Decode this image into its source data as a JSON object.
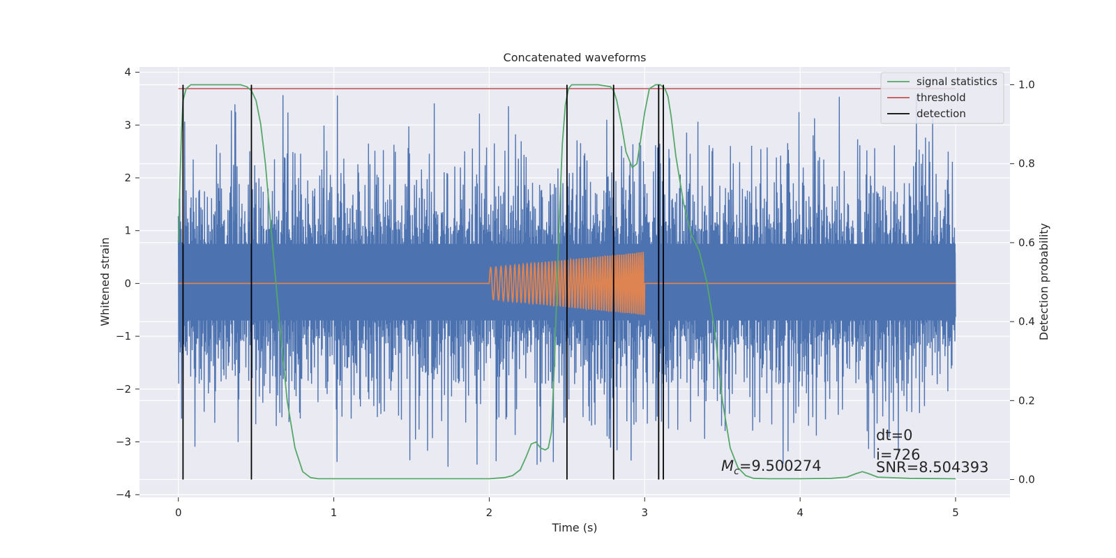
{
  "chart_data": {
    "type": "line",
    "title": "Concatenated waveforms",
    "xlabel": "Time (s)",
    "ylabel": "Whitened strain",
    "y2label": "Detection probability",
    "xlim": [
      -0.25,
      5.35
    ],
    "ylim": [
      -4.05,
      4.1
    ],
    "y2lim": [
      -0.045,
      1.045
    ],
    "xticks": [
      0,
      1,
      2,
      3,
      4,
      5
    ],
    "yticks": [
      4,
      3,
      2,
      1,
      0,
      -1,
      -2,
      -3,
      -4
    ],
    "y2ticks": [
      1.0,
      0.8,
      0.6,
      0.4,
      0.2,
      0.0
    ],
    "xtick_labels": [
      "0",
      "1",
      "2",
      "3",
      "4",
      "5"
    ],
    "ytick_labels": [
      "4",
      "3",
      "2",
      "1",
      "0",
      "−1",
      "−2",
      "−3",
      "−4"
    ],
    "y2tick_labels": [
      "1.0",
      "0.8",
      "0.6",
      "0.4",
      "0.2",
      "0.0"
    ],
    "grid": true,
    "legend_position": "top-right",
    "colors": {
      "strain": "#4c72b0",
      "injected_waveform": "#dd8452",
      "signal_statistics": "#55a868",
      "threshold": "#c44e52",
      "detection": "#000000",
      "axes_background": "#eaeaf2",
      "grid": "#ffffff"
    },
    "strain": {
      "x_range": [
        0,
        5
      ],
      "core_band": [
        -0.7,
        0.75
      ],
      "typical_extent": [
        -2.5,
        2.8
      ],
      "max": 3.7,
      "min": -3.6
    },
    "injected_waveform": {
      "x_range": [
        0,
        5
      ],
      "baseline": 0,
      "chirp_start": 2.0,
      "chirp_end": 3.0,
      "amplitude_start": 0.3,
      "amplitude_end": 0.6
    },
    "series": [
      {
        "name": "signal statistics",
        "axis": "right",
        "x": [
          0,
          0.01,
          0.02,
          0.03,
          0.05,
          0.08,
          0.12,
          0.2,
          0.3,
          0.4,
          0.44,
          0.47,
          0.5,
          0.53,
          0.56,
          0.6,
          0.65,
          0.7,
          0.75,
          0.8,
          0.85,
          0.9,
          1.0,
          1.2,
          1.4,
          1.6,
          1.8,
          2.0,
          2.1,
          2.15,
          2.2,
          2.24,
          2.27,
          2.3,
          2.33,
          2.36,
          2.38,
          2.4,
          2.42,
          2.45,
          2.47,
          2.49,
          2.51,
          2.53,
          2.56,
          2.6,
          2.7,
          2.78,
          2.8,
          2.82,
          2.85,
          2.88,
          2.92,
          2.95,
          2.97,
          3.0,
          3.03,
          3.07,
          3.1,
          3.13,
          3.15,
          3.17,
          3.2,
          3.25,
          3.3,
          3.35,
          3.4,
          3.45,
          3.5,
          3.55,
          3.6,
          3.65,
          3.7,
          3.8,
          4.0,
          4.2,
          4.3,
          4.36,
          4.4,
          4.44,
          4.5,
          4.7,
          5.0
        ],
        "values": [
          0.6,
          0.75,
          0.88,
          0.96,
          0.99,
          1.0,
          1.0,
          1.0,
          1.0,
          1.0,
          0.995,
          0.985,
          0.96,
          0.9,
          0.8,
          0.62,
          0.4,
          0.2,
          0.08,
          0.02,
          0.005,
          0.002,
          0.002,
          0.002,
          0.002,
          0.002,
          0.002,
          0.002,
          0.005,
          0.01,
          0.025,
          0.06,
          0.09,
          0.095,
          0.08,
          0.075,
          0.08,
          0.12,
          0.3,
          0.65,
          0.85,
          0.95,
          0.99,
          1.0,
          1.0,
          1.0,
          1.0,
          0.995,
          0.985,
          0.96,
          0.9,
          0.83,
          0.79,
          0.8,
          0.85,
          0.93,
          0.99,
          1.0,
          1.0,
          0.99,
          0.97,
          0.92,
          0.82,
          0.7,
          0.62,
          0.58,
          0.5,
          0.38,
          0.2,
          0.08,
          0.03,
          0.01,
          0.003,
          0.002,
          0.002,
          0.003,
          0.006,
          0.015,
          0.02,
          0.015,
          0.006,
          0.003,
          0.002
        ]
      },
      {
        "name": "threshold",
        "axis": "right",
        "x": [
          0,
          5
        ],
        "values": [
          0.99,
          0.99
        ]
      },
      {
        "name": "detection",
        "axis": "right",
        "type": "vlines",
        "x": [
          0.03,
          0.47,
          2.5,
          2.8,
          3.09,
          3.12
        ],
        "y_range": [
          0,
          1
        ]
      }
    ],
    "annotations": [
      {
        "id": "mc",
        "symbol": "M",
        "subscript": "c",
        "text": "=9.500274"
      },
      {
        "id": "dt",
        "text": "dt=0"
      },
      {
        "id": "i",
        "text": "i=726"
      },
      {
        "id": "snr",
        "text": "SNR=8.504393"
      }
    ]
  }
}
